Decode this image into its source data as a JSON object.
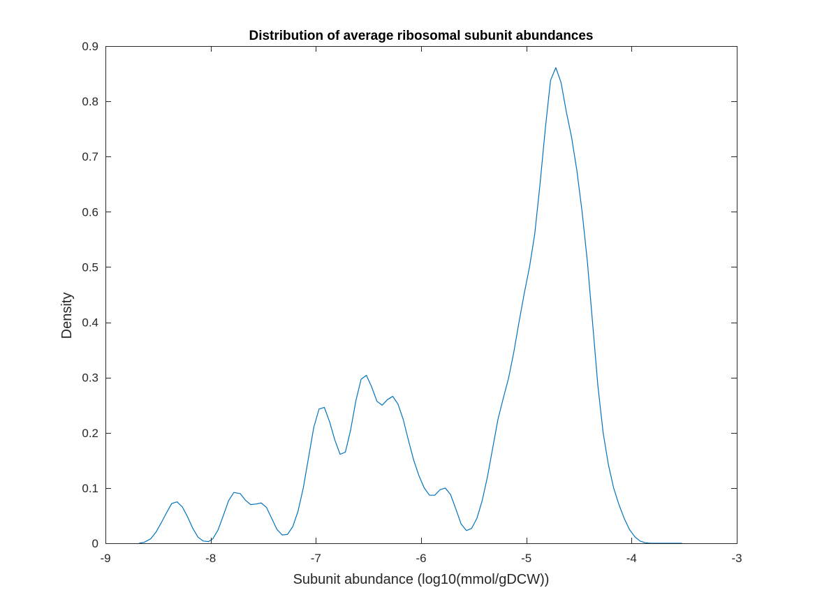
{
  "chart_data": {
    "type": "line",
    "title": "Distribution of average ribosomal subunit abundances",
    "xlabel": "Subunit abundance (log10(mmol/gDCW))",
    "ylabel": "Density",
    "xlim": [
      -9,
      -3
    ],
    "ylim": [
      0,
      0.9
    ],
    "xticks": [
      -9,
      -8,
      -7,
      -6,
      -5,
      -4,
      -3
    ],
    "yticks": [
      0,
      0.1,
      0.2,
      0.3,
      0.4,
      0.5,
      0.6,
      0.7,
      0.8,
      0.9
    ],
    "xtick_labels": [
      "-9",
      "-8",
      "-7",
      "-6",
      "-5",
      "-4",
      "-3"
    ],
    "ytick_labels": [
      "0",
      "0.1",
      "0.2",
      "0.3",
      "0.4",
      "0.5",
      "0.6",
      "0.7",
      "0.8",
      "0.9"
    ],
    "grid": false,
    "line_color": "#0072BD",
    "series": [
      {
        "x": [
          -8.68,
          -8.63,
          -8.57,
          -8.52,
          -8.47,
          -8.42,
          -8.37,
          -8.32,
          -8.27,
          -8.22,
          -8.17,
          -8.12,
          -8.07,
          -8.02,
          -7.98,
          -7.93,
          -7.88,
          -7.83,
          -7.78,
          -7.72,
          -7.67,
          -7.62,
          -7.57,
          -7.52,
          -7.47,
          -7.42,
          -7.37,
          -7.32,
          -7.27,
          -7.22,
          -7.17,
          -7.12,
          -7.07,
          -7.02,
          -6.97,
          -6.92,
          -6.87,
          -6.82,
          -6.77,
          -6.72,
          -6.67,
          -6.62,
          -6.57,
          -6.52,
          -6.47,
          -6.42,
          -6.37,
          -6.32,
          -6.27,
          -6.22,
          -6.17,
          -6.12,
          -6.07,
          -6.02,
          -5.97,
          -5.92,
          -5.87,
          -5.82,
          -5.77,
          -5.72,
          -5.67,
          -5.62,
          -5.57,
          -5.52,
          -5.47,
          -5.42,
          -5.37,
          -5.32,
          -5.27,
          -5.22,
          -5.17,
          -5.12,
          -5.07,
          -5.02,
          -4.97,
          -4.92,
          -4.87,
          -4.82,
          -4.77,
          -4.72,
          -4.67,
          -4.62,
          -4.57,
          -4.52,
          -4.47,
          -4.42,
          -4.37,
          -4.32,
          -4.27,
          -4.22,
          -4.17,
          -4.12,
          -4.07,
          -4.02,
          -3.97,
          -3.92,
          -3.87,
          -3.82,
          -3.77,
          -3.72,
          -3.67,
          -3.62,
          -3.57,
          -3.52
        ],
        "y": [
          0.0,
          0.002,
          0.008,
          0.02,
          0.037,
          0.055,
          0.072,
          0.075,
          0.066,
          0.048,
          0.027,
          0.011,
          0.004,
          0.003,
          0.008,
          0.024,
          0.05,
          0.077,
          0.092,
          0.09,
          0.078,
          0.07,
          0.071,
          0.073,
          0.065,
          0.045,
          0.025,
          0.015,
          0.016,
          0.03,
          0.058,
          0.1,
          0.155,
          0.21,
          0.243,
          0.246,
          0.22,
          0.187,
          0.161,
          0.165,
          0.205,
          0.258,
          0.297,
          0.304,
          0.283,
          0.257,
          0.25,
          0.26,
          0.266,
          0.252,
          0.224,
          0.186,
          0.15,
          0.122,
          0.1,
          0.087,
          0.087,
          0.097,
          0.1,
          0.088,
          0.062,
          0.035,
          0.023,
          0.027,
          0.045,
          0.077,
          0.12,
          0.172,
          0.224,
          0.262,
          0.298,
          0.345,
          0.4,
          0.452,
          0.5,
          0.56,
          0.65,
          0.75,
          0.838,
          0.861,
          0.834,
          0.781,
          0.735,
          0.675,
          0.6,
          0.51,
          0.398,
          0.285,
          0.2,
          0.142,
          0.1,
          0.07,
          0.045,
          0.025,
          0.012,
          0.004,
          0.001,
          0.0,
          0.0,
          0.0,
          0.0,
          0.0,
          0.0,
          0.0
        ]
      }
    ]
  }
}
